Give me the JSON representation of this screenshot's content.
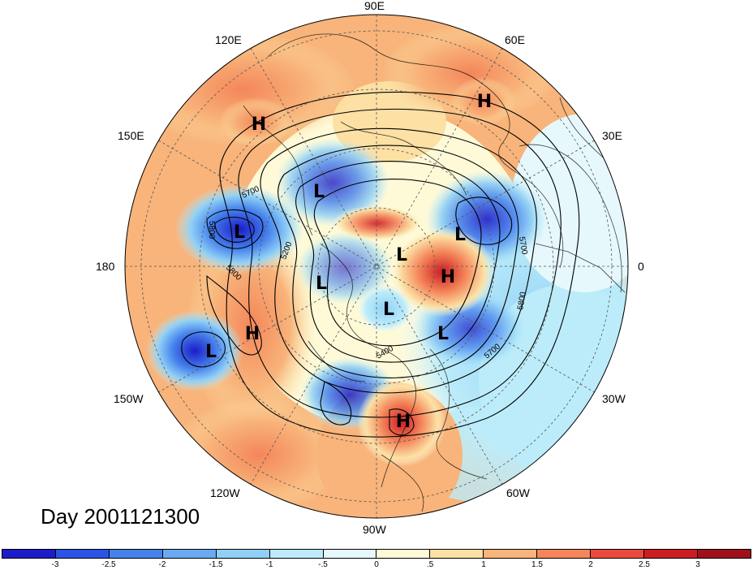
{
  "title": "Day 2001121300",
  "longitude_labels": {
    "top": "90E",
    "left": "180",
    "right": "0",
    "bottom": "90W",
    "upper_left_1": "120E",
    "upper_left_2": "150E",
    "upper_right_1": "60E",
    "upper_right_2": "30E",
    "lower_left_1": "150W",
    "lower_left_2": "120W",
    "lower_right_1": "30W",
    "lower_right_2": "60W"
  },
  "contour_labels": [
    "5700",
    "5800",
    "5200",
    "5800",
    "5700",
    "5800",
    "5400",
    "5700"
  ],
  "pressure_centers": [
    {
      "type": "H"
    },
    {
      "type": "H"
    },
    {
      "type": "L"
    },
    {
      "type": "L"
    },
    {
      "type": "L"
    },
    {
      "type": "L"
    },
    {
      "type": "H"
    },
    {
      "type": "L"
    },
    {
      "type": "L"
    },
    {
      "type": "L"
    },
    {
      "type": "H"
    },
    {
      "type": "L"
    },
    {
      "type": "H"
    }
  ],
  "colorbar": {
    "ticks": [
      "-3",
      "-2.5",
      "-2",
      "-1.5",
      "-1",
      "-.5",
      "0",
      ".5",
      "1",
      "1.5",
      "2",
      "2.5",
      "3"
    ],
    "colors": [
      "#1c1cc8",
      "#2c52e6",
      "#4682ec",
      "#6aaaf0",
      "#90d0f6",
      "#bcecfa",
      "#e6f8fc",
      "#fefad8",
      "#fce0a4",
      "#f8b47a",
      "#f4865a",
      "#ea4a3c",
      "#cc1c24",
      "#a0101a"
    ]
  }
}
